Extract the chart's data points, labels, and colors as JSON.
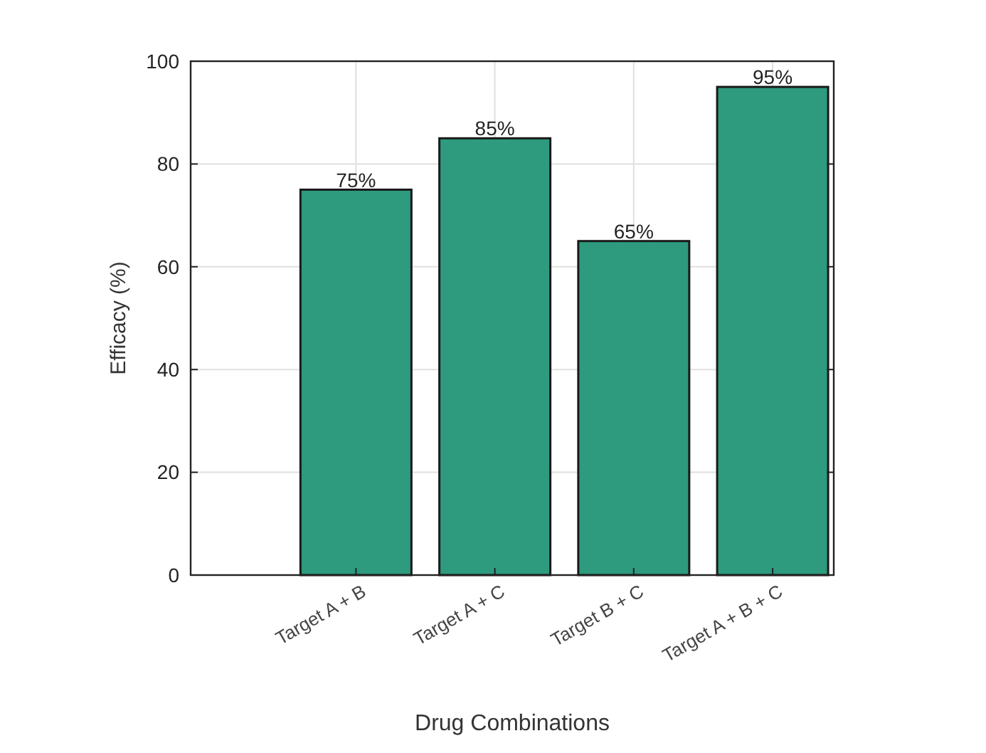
{
  "chart_data": {
    "type": "bar",
    "xlabel": "Drug Combinations",
    "ylabel": "Efficacy (%)",
    "categories": [
      "Target A + B",
      "Target A + C",
      "Target B + C",
      "Target A + B + C"
    ],
    "values": [
      75,
      85,
      65,
      95
    ],
    "value_labels": [
      "75%",
      "85%",
      "65%",
      "95%"
    ],
    "color": "#2e9a7e",
    "ylim": [
      0,
      100
    ],
    "yticks": [
      0,
      20,
      40,
      60,
      80,
      100
    ],
    "grid": true
  }
}
